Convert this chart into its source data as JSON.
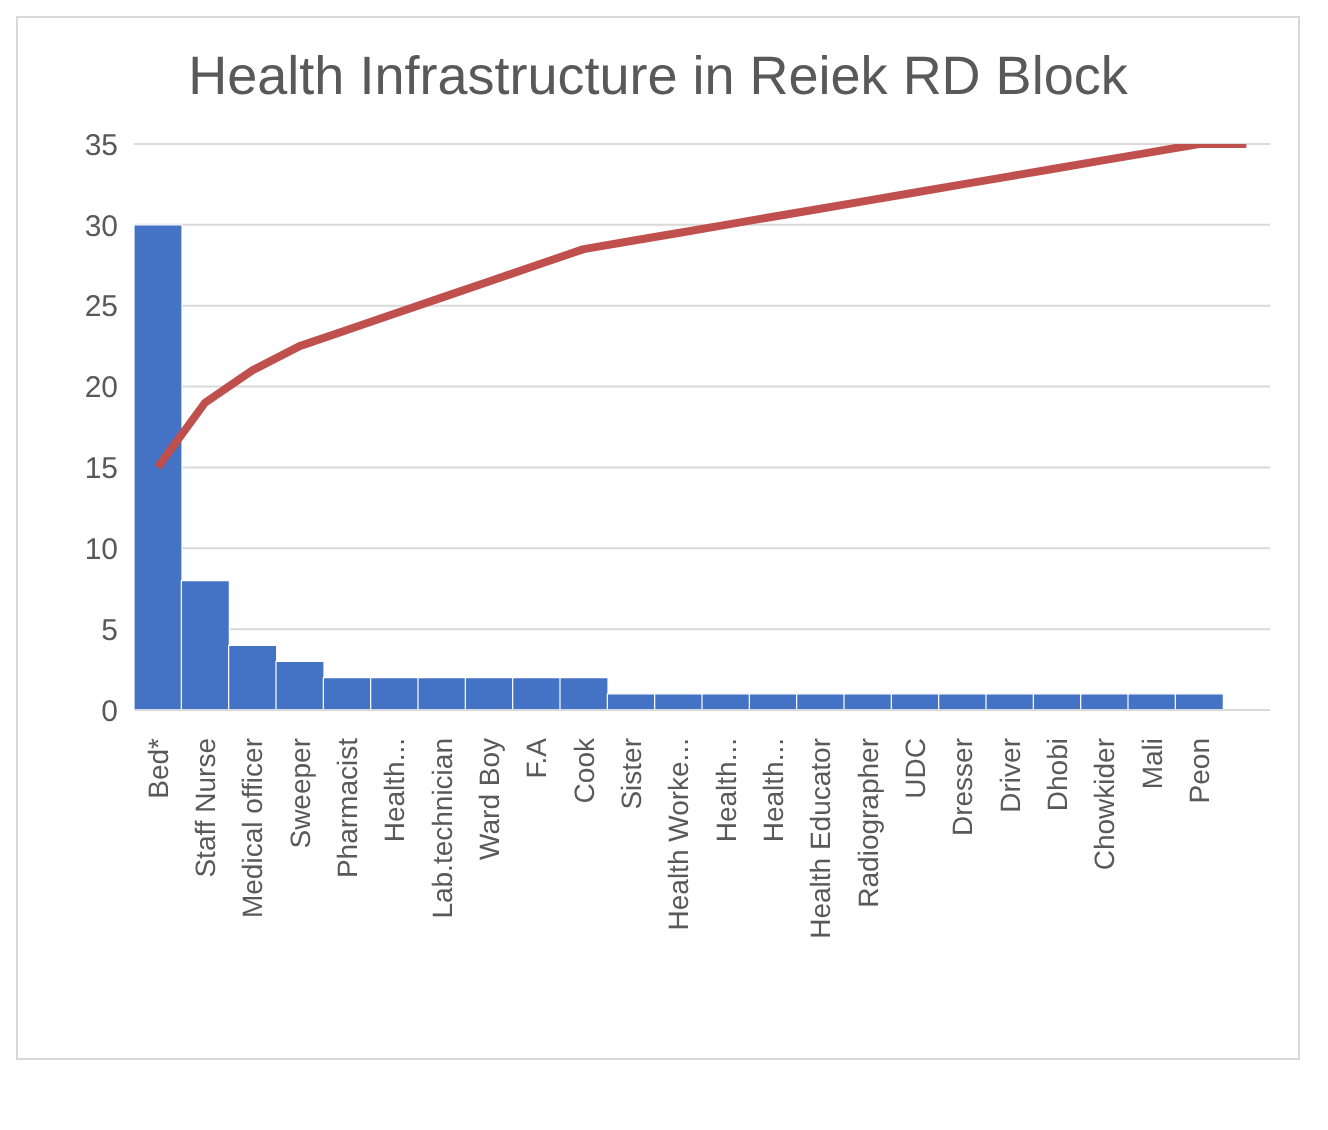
{
  "chart_data": {
    "type": "bar",
    "title": "Health Infrastructure in Reiek RD Block",
    "categories": [
      "Bed*",
      "Staff Nurse",
      "Medical officer",
      "Sweeper",
      "Pharmacist",
      "Health...",
      "Lab.technician",
      "Ward Boy",
      "F.A",
      "Cook",
      "Sister",
      "Health Worke...",
      "Health...",
      "Health...",
      "Health Educator",
      "Radiographer",
      "UDC",
      "Dresser",
      "Driver",
      "Dhobi",
      "Chowkider",
      "Mali",
      "Peon",
      null
    ],
    "series": [
      {
        "color": "#4472c4",
        "values": [
          30,
          8,
          4,
          3,
          2,
          2,
          2,
          2,
          2,
          2,
          1,
          1,
          1,
          1,
          1,
          1,
          1,
          1,
          1,
          1,
          1,
          1,
          1,
          null
        ]
      },
      {
        "type": "line",
        "color": "#c0504d",
        "values": [
          15,
          19,
          21,
          22.5,
          23.5,
          24.5,
          25.5,
          26.5,
          27.5,
          28.5,
          29,
          29.5,
          30,
          30.5,
          31,
          31.5,
          32,
          32.5,
          33,
          33.5,
          34,
          34.5,
          35,
          35
        ]
      }
    ],
    "ylim": [
      0,
      35
    ],
    "yticks": [
      0,
      5,
      10,
      15,
      20,
      25,
      30,
      35
    ],
    "grid": "y",
    "marker": "none",
    "line_style": "solid"
  }
}
